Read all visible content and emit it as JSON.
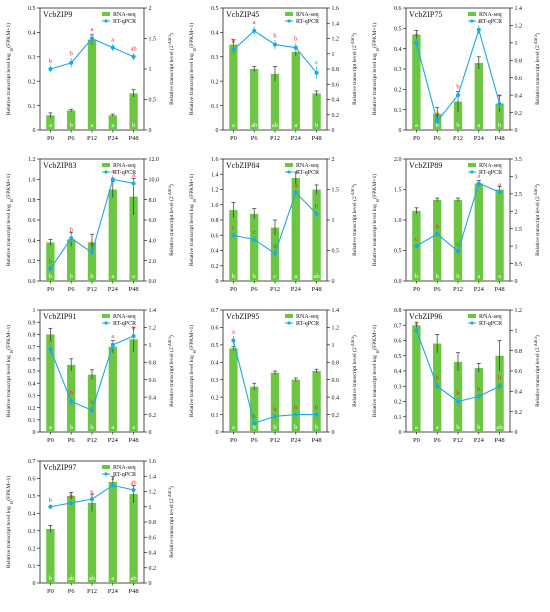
{
  "legend": {
    "bar": "RNA-seq",
    "line": "RT-qPCR"
  },
  "ylabel_left": "Relative transcript level log",
  "ylabel_left_sub": "10",
  "ylabel_left_tail": "(FPKM+1)",
  "ylabel_right": "Relative transcript level (2",
  "ylabel_right_sup": "-ΔΔCt",
  "ylabel_right_tail": ")",
  "colors": {
    "bar": "#6cc644",
    "line": "#1ea7e6",
    "letters_line": "#e8262a",
    "letters_bar": "#ffffff"
  },
  "chart_data": [
    {
      "type": "bar",
      "title": "VcbZIP9",
      "categories": [
        "P0",
        "P6",
        "P12",
        "P24",
        "P48"
      ],
      "series": [
        {
          "name": "RNA-seq",
          "axis": "left",
          "values": [
            0.06,
            0.08,
            0.37,
            0.06,
            0.15
          ],
          "errors": [
            0.01,
            0.005,
            0.02,
            0.005,
            0.015
          ],
          "letters": [
            "a",
            "b",
            "a",
            "a",
            "b"
          ]
        },
        {
          "name": "RT-qPCR",
          "axis": "right",
          "type": "line",
          "values": [
            1.0,
            1.1,
            1.5,
            1.35,
            1.2
          ],
          "errors": [
            0.06,
            0.08,
            0.08,
            0.06,
            0.06
          ],
          "letters": [
            "b",
            "b",
            "a",
            "a",
            "ab"
          ]
        }
      ],
      "ylim_left": [
        0,
        0.5
      ],
      "yticks_left": [
        0,
        0.1,
        0.2,
        0.3,
        0.4,
        0.5
      ],
      "ylim_right": [
        0,
        2.0
      ],
      "yticks_right": [
        0,
        0.5,
        1.0,
        1.5,
        2.0
      ],
      "tick_left": [
        "0",
        "0.1",
        "0.2",
        "0.3",
        "0.4",
        "0.5"
      ],
      "tick_right": [
        "0",
        "0.5",
        "1",
        "1.5",
        "2"
      ]
    },
    {
      "type": "bar",
      "title": "VcbZIP45",
      "categories": [
        "P0",
        "P6",
        "P12",
        "P24",
        "P48"
      ],
      "series": [
        {
          "name": "RNA-seq",
          "axis": "left",
          "values": [
            0.35,
            0.25,
            0.23,
            0.32,
            0.15
          ],
          "errors": [
            0.02,
            0.01,
            0.03,
            0.015,
            0.01
          ],
          "letters": [
            "a",
            "ab",
            "ab",
            "a",
            "b"
          ]
        },
        {
          "name": "RT-qPCR",
          "axis": "right",
          "type": "line",
          "values": [
            1.05,
            1.3,
            1.12,
            1.08,
            0.75
          ],
          "errors": [
            0.06,
            0.06,
            0.06,
            0.06,
            0.08
          ],
          "letters": [
            "b",
            "a",
            "b",
            "b",
            "c"
          ]
        }
      ],
      "ylim_left": [
        0,
        0.5
      ],
      "yticks_left": [
        0,
        0.1,
        0.2,
        0.3,
        0.4,
        0.5
      ],
      "ylim_right": [
        0,
        1.6
      ],
      "yticks_right": [
        0,
        0.2,
        0.4,
        0.6,
        0.8,
        1.0,
        1.2,
        1.4,
        1.6
      ],
      "tick_left": [
        "0",
        "0.1",
        "0.2",
        "0.3",
        "0.4",
        "0.5"
      ],
      "tick_right": [
        "0",
        "0.2",
        "0.4",
        "0.6",
        "0.8",
        "1",
        "1.2",
        "1.4",
        "1.6"
      ]
    },
    {
      "type": "bar",
      "title": "VcbZIP75",
      "categories": [
        "P0",
        "P6",
        "P12",
        "P24",
        "P48"
      ],
      "series": [
        {
          "name": "RNA-seq",
          "axis": "left",
          "values": [
            0.47,
            0.08,
            0.14,
            0.33,
            0.13
          ],
          "errors": [
            0.02,
            0.03,
            0.05,
            0.03,
            0.04
          ],
          "letters": [
            "a",
            "b",
            "b",
            "a",
            "b"
          ]
        },
        {
          "name": "RT-qPCR",
          "axis": "right",
          "type": "line",
          "values": [
            1.0,
            0.1,
            0.4,
            1.15,
            0.3
          ],
          "errors": [
            0.05,
            0.03,
            0.05,
            0.05,
            0.05
          ],
          "letters": [
            "a",
            "d",
            "b",
            "a",
            "c"
          ]
        }
      ],
      "ylim_left": [
        0,
        0.6
      ],
      "yticks_left": [
        0,
        0.1,
        0.2,
        0.3,
        0.4,
        0.5,
        0.6
      ],
      "ylim_right": [
        0,
        1.4
      ],
      "yticks_right": [
        0,
        0.2,
        0.4,
        0.6,
        0.8,
        1.0,
        1.2,
        1.4
      ],
      "tick_left": [
        "0",
        "0.1",
        "0.2",
        "0.3",
        "0.4",
        "0.5",
        "0.6"
      ],
      "tick_right": [
        "0",
        "0.2",
        "0.4",
        "0.6",
        "0.8",
        "1",
        "1.2",
        "1.4"
      ]
    },
    {
      "type": "bar",
      "title": "VcbZIP83",
      "categories": [
        "P0",
        "P6",
        "P12",
        "P24",
        "P48"
      ],
      "series": [
        {
          "name": "RNA-seq",
          "axis": "left",
          "values": [
            0.38,
            0.41,
            0.38,
            0.9,
            0.83
          ],
          "errors": [
            0.03,
            0.07,
            0.08,
            0.08,
            0.18
          ],
          "letters": [
            "b",
            "b",
            "b",
            "a",
            "a"
          ]
        },
        {
          "name": "RT-qPCR",
          "axis": "right",
          "type": "line",
          "values": [
            1.2,
            4.2,
            2.8,
            10.0,
            9.6
          ],
          "errors": [
            0.3,
            0.4,
            0.4,
            0.4,
            0.4
          ],
          "letters": [
            "b",
            "b",
            "b",
            "a",
            "a"
          ]
        }
      ],
      "ylim_left": [
        0,
        1.2
      ],
      "yticks_left": [
        0,
        0.2,
        0.4,
        0.6,
        0.8,
        1.0,
        1.2
      ],
      "ylim_right": [
        0,
        12
      ],
      "yticks_right": [
        0,
        2,
        4,
        6,
        8,
        10,
        12
      ],
      "tick_left": [
        "0.0",
        "0.2",
        "0.4",
        "0.6",
        "0.8",
        "1.0",
        "1.2"
      ],
      "tick_right": [
        "0.0",
        "2.0",
        "4.0",
        "6.0",
        "8.0",
        "10.0",
        "12.0"
      ]
    },
    {
      "type": "bar",
      "title": "VcbZIP84",
      "categories": [
        "P0",
        "P6",
        "P12",
        "P24",
        "P48"
      ],
      "series": [
        {
          "name": "RNA-seq",
          "axis": "left",
          "values": [
            0.93,
            0.88,
            0.7,
            1.35,
            1.2
          ],
          "errors": [
            0.1,
            0.07,
            0.1,
            0.08,
            0.06
          ],
          "letters": [
            "b",
            "b",
            "c",
            "a",
            "ab"
          ]
        },
        {
          "name": "RT-qPCR",
          "axis": "right",
          "type": "line",
          "values": [
            0.75,
            0.68,
            0.45,
            1.45,
            1.1
          ],
          "errors": [
            0.05,
            0.05,
            0.05,
            0.05,
            0.05
          ],
          "letters": [
            "c",
            "c",
            "d",
            "a",
            "b"
          ]
        }
      ],
      "ylim_left": [
        0,
        1.6
      ],
      "yticks_left": [
        0,
        0.2,
        0.4,
        0.6,
        0.8,
        1.0,
        1.2,
        1.4,
        1.6
      ],
      "ylim_right": [
        0,
        2.0
      ],
      "yticks_right": [
        0,
        0.5,
        1.0,
        1.5,
        2.0
      ],
      "tick_left": [
        "0",
        "0.2",
        "0.4",
        "0.6",
        "0.8",
        "1.0",
        "1.2",
        "1.4",
        "1.6"
      ],
      "tick_right": [
        "0",
        "0.5",
        "1",
        "1.5",
        "2"
      ]
    },
    {
      "type": "bar",
      "title": "VcbZIP89",
      "categories": [
        "P0",
        "P6",
        "P12",
        "P24",
        "P48"
      ],
      "series": [
        {
          "name": "RNA-seq",
          "axis": "left",
          "values": [
            1.15,
            1.33,
            1.33,
            1.6,
            1.5
          ],
          "errors": [
            0.05,
            0.03,
            0.03,
            0.05,
            0.05
          ],
          "letters": [
            "b",
            "b",
            "b",
            "a",
            "a"
          ]
        },
        {
          "name": "RT-qPCR",
          "axis": "right",
          "type": "line",
          "values": [
            1.0,
            1.35,
            0.85,
            2.8,
            2.55
          ],
          "errors": [
            0.08,
            0.08,
            0.08,
            0.1,
            0.1
          ],
          "letters": [
            "c",
            "b",
            "c",
            "a",
            "a"
          ]
        }
      ],
      "ylim_left": [
        0,
        2.0
      ],
      "yticks_left": [
        0,
        0.5,
        1.0,
        1.5,
        2.0
      ],
      "ylim_right": [
        0,
        3.5
      ],
      "yticks_right": [
        0,
        0.5,
        1.0,
        1.5,
        2.0,
        2.5,
        3.0,
        3.5
      ],
      "tick_left": [
        "0.0",
        "0.5",
        "1.0",
        "1.5",
        "2.0"
      ],
      "tick_right": [
        "0",
        "0.5",
        "1",
        "1.5",
        "2",
        "2.5",
        "3",
        "3.5"
      ]
    },
    {
      "type": "bar",
      "title": "VcbZIP91",
      "categories": [
        "P0",
        "P6",
        "P12",
        "P24",
        "P48"
      ],
      "series": [
        {
          "name": "RNA-seq",
          "axis": "left",
          "values": [
            0.8,
            0.55,
            0.47,
            0.7,
            0.76
          ],
          "errors": [
            0.05,
            0.05,
            0.04,
            0.05,
            0.1
          ],
          "letters": [
            "a",
            "b",
            "b",
            "a",
            "a"
          ]
        },
        {
          "name": "RT-qPCR",
          "axis": "right",
          "type": "line",
          "values": [
            0.95,
            0.35,
            0.25,
            1.0,
            1.1
          ],
          "errors": [
            0.05,
            0.05,
            0.04,
            0.05,
            0.05
          ],
          "letters": [
            "a",
            "b",
            "b",
            "a",
            "a"
          ]
        }
      ],
      "ylim_left": [
        0,
        1.0
      ],
      "yticks_left": [
        0,
        0.1,
        0.2,
        0.3,
        0.4,
        0.5,
        0.6,
        0.7,
        0.8,
        0.9,
        1.0
      ],
      "ylim_right": [
        0,
        1.4
      ],
      "yticks_right": [
        0,
        0.2,
        0.4,
        0.6,
        0.8,
        1.0,
        1.2,
        1.4
      ],
      "tick_left": [
        "0",
        "0.1",
        "0.2",
        "0.3",
        "0.4",
        "0.5",
        "0.6",
        "0.7",
        "0.8",
        "0.9",
        "1"
      ],
      "tick_right": [
        "0",
        "0.2",
        "0.4",
        "0.6",
        "0.8",
        "1",
        "1.2",
        "1.4"
      ]
    },
    {
      "type": "bar",
      "title": "VcbZIP95",
      "categories": [
        "P0",
        "P6",
        "P12",
        "P24",
        "P48"
      ],
      "series": [
        {
          "name": "RNA-seq",
          "axis": "left",
          "values": [
            0.48,
            0.26,
            0.34,
            0.3,
            0.35
          ],
          "errors": [
            0.01,
            0.02,
            0.01,
            0.01,
            0.01
          ],
          "letters": [
            "a",
            "b",
            "b",
            "b",
            "b"
          ]
        },
        {
          "name": "RT-qPCR",
          "axis": "right",
          "type": "line",
          "values": [
            1.05,
            0.1,
            0.18,
            0.2,
            0.2
          ],
          "errors": [
            0.05,
            0.03,
            0.03,
            0.03,
            0.03
          ],
          "letters": [
            "a",
            "b",
            "b",
            "b",
            "b"
          ]
        }
      ],
      "ylim_left": [
        0,
        0.7
      ],
      "yticks_left": [
        0,
        0.1,
        0.2,
        0.3,
        0.4,
        0.5,
        0.6,
        0.7
      ],
      "ylim_right": [
        0,
        1.4
      ],
      "yticks_right": [
        0,
        0.2,
        0.4,
        0.6,
        0.8,
        1.0,
        1.2,
        1.4
      ],
      "tick_left": [
        "0",
        "0.1",
        "0.2",
        "0.3",
        "0.4",
        "0.5",
        "0.6",
        "0.7"
      ],
      "tick_right": [
        "0",
        "0.2",
        "0.4",
        "0.6",
        "0.8",
        "1",
        "1.2",
        "1.4"
      ]
    },
    {
      "type": "bar",
      "title": "VcbZIP96",
      "categories": [
        "P0",
        "P6",
        "P12",
        "P24",
        "P48"
      ],
      "series": [
        {
          "name": "RNA-seq",
          "axis": "left",
          "values": [
            0.7,
            0.58,
            0.46,
            0.42,
            0.5
          ],
          "errors": [
            0.02,
            0.06,
            0.06,
            0.03,
            0.1
          ],
          "letters": [
            "a",
            "a",
            "b",
            "b",
            "ab"
          ]
        },
        {
          "name": "RT-qPCR",
          "axis": "right",
          "type": "line",
          "values": [
            1.0,
            0.45,
            0.3,
            0.35,
            0.45
          ],
          "errors": [
            0.03,
            0.04,
            0.04,
            0.03,
            0.04
          ],
          "letters": [
            "a",
            "b",
            "b",
            "b",
            "b"
          ]
        }
      ],
      "ylim_left": [
        0,
        0.8
      ],
      "yticks_left": [
        0,
        0.1,
        0.2,
        0.3,
        0.4,
        0.5,
        0.6,
        0.7,
        0.8
      ],
      "ylim_right": [
        0,
        1.2
      ],
      "yticks_right": [
        0,
        0.2,
        0.4,
        0.6,
        0.8,
        1.0,
        1.2
      ],
      "tick_left": [
        "0",
        "0.1",
        "0.2",
        "0.3",
        "0.4",
        "0.5",
        "0.6",
        "0.7",
        "0.8"
      ],
      "tick_right": [
        "0",
        "0.2",
        "0.4",
        "0.6",
        "0.8",
        "1",
        "1.2"
      ]
    },
    {
      "type": "bar",
      "title": "VcbZIP97",
      "categories": [
        "P0",
        "P6",
        "P12",
        "P24",
        "P48"
      ],
      "series": [
        {
          "name": "RNA-seq",
          "axis": "left",
          "values": [
            0.31,
            0.5,
            0.46,
            0.58,
            0.51
          ],
          "errors": [
            0.02,
            0.02,
            0.05,
            0.03,
            0.05
          ],
          "letters": [
            "b",
            "ab",
            "ab",
            "a",
            "ab"
          ]
        },
        {
          "name": "RT-qPCR",
          "axis": "right",
          "type": "line",
          "values": [
            1.0,
            1.05,
            1.1,
            1.28,
            1.22
          ],
          "errors": [
            0.03,
            0.03,
            0.03,
            0.04,
            0.04
          ],
          "letters": [
            "b",
            "b",
            "b",
            "a",
            "ab"
          ]
        }
      ],
      "ylim_left": [
        0,
        0.7
      ],
      "yticks_left": [
        0,
        0.1,
        0.2,
        0.3,
        0.4,
        0.5,
        0.6,
        0.7
      ],
      "ylim_right": [
        0,
        1.6
      ],
      "yticks_right": [
        0,
        0.2,
        0.4,
        0.6,
        0.8,
        1.0,
        1.2,
        1.4,
        1.6
      ],
      "tick_left": [
        "0",
        "0.1",
        "0.2",
        "0.3",
        "0.4",
        "0.5",
        "0.6",
        "0.7"
      ],
      "tick_right": [
        "0",
        "0.2",
        "0.4",
        "0.6",
        "0.8",
        "1",
        "1.2",
        "1.4",
        "1.6"
      ]
    }
  ]
}
